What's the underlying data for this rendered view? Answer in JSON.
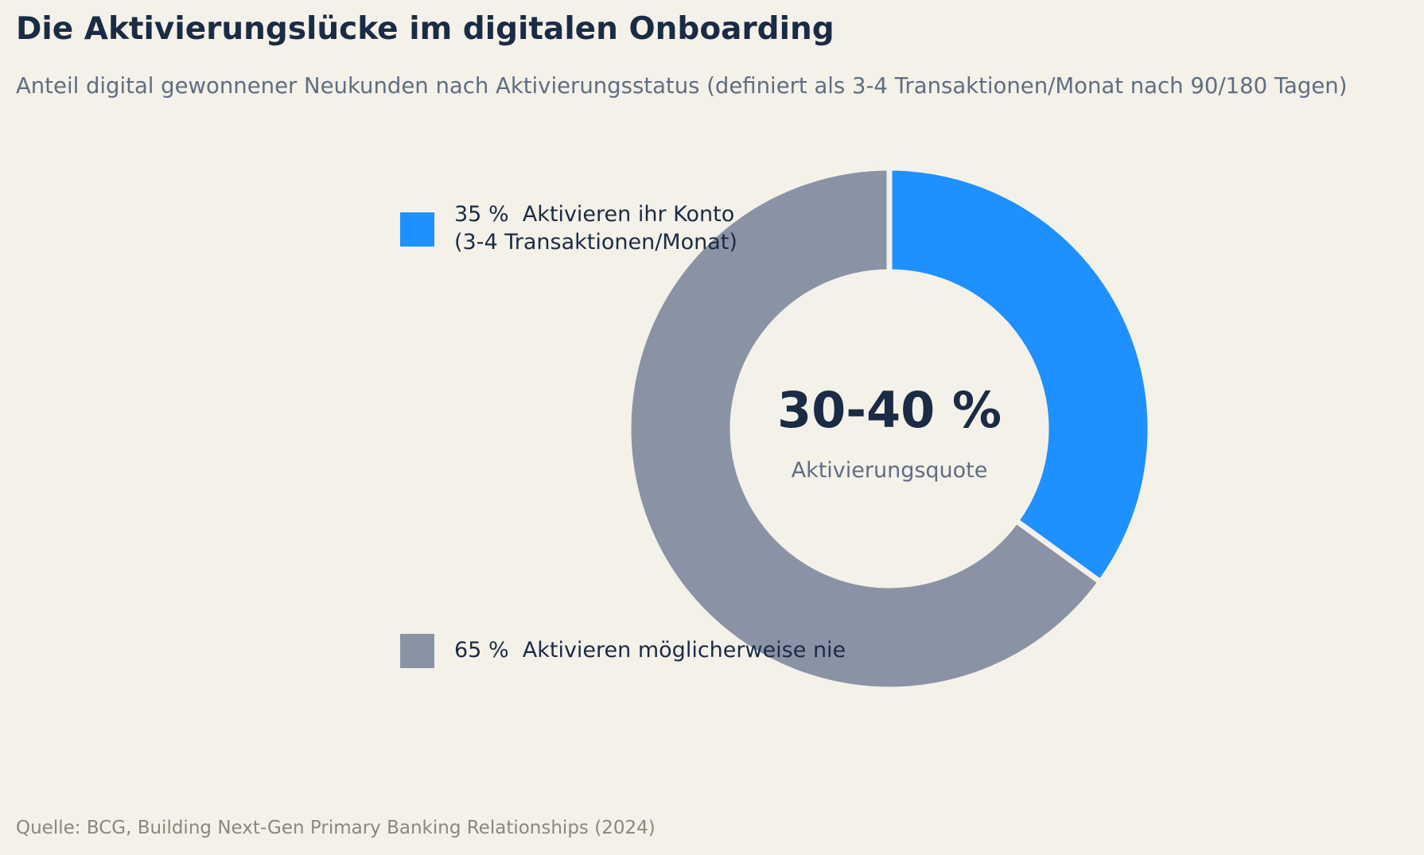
{
  "title": "Die Aktivierungslücke im digitalen Onboarding",
  "subtitle": "Anteil digital gewonnener Neukunden nach Aktivierungsstatus (definiert als 3-4 Transaktionen/Monat nach 90/180 Tagen)",
  "source": "Quelle: BCG, Building Next-Gen Primary Banking Relationships (2024)",
  "chart_data": {
    "type": "pie",
    "variant": "donut",
    "slices": [
      {
        "value": 35,
        "color": "#1e90ff",
        "legend_lines": [
          "35 %  Aktivieren ihr Konto",
          "(3-4 Transaktionen/Monat)"
        ]
      },
      {
        "value": 65,
        "color": "#8a93a5",
        "legend_lines": [
          "65 %  Aktivieren möglicherweise nie"
        ]
      }
    ],
    "center_value": "30-40 %",
    "center_label": "Aktivierungsquote",
    "legend_placement": "left"
  }
}
